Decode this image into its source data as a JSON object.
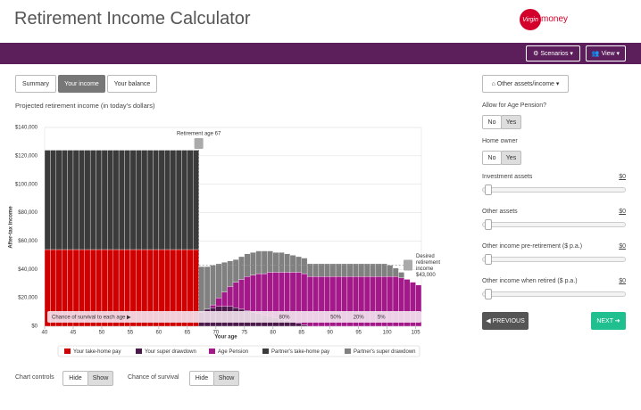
{
  "header": {
    "title": "Retirement Income Calculator",
    "logo_script": "Virgin",
    "logo_word": "money"
  },
  "toolbar": {
    "buttons": [
      "⚙ Scenarios ▾",
      "👥 View ▾"
    ]
  },
  "tabs": {
    "items": [
      "Summary",
      "Your income",
      "Your balance"
    ],
    "active": 1
  },
  "chart_data": {
    "type": "stacked-bar",
    "title": "Projected retirement income (in today's dollars)",
    "x_label": "Your age",
    "y_label": "After-tax income",
    "x": [
      40,
      41,
      42,
      43,
      44,
      45,
      46,
      47,
      48,
      49,
      50,
      51,
      52,
      53,
      54,
      55,
      56,
      57,
      58,
      59,
      60,
      61,
      62,
      63,
      64,
      65,
      66,
      67,
      68,
      69,
      70,
      71,
      72,
      73,
      74,
      75,
      76,
      77,
      78,
      79,
      80,
      81,
      82,
      83,
      84,
      85,
      86,
      87,
      88,
      89,
      90,
      91,
      92,
      93,
      94,
      95,
      96,
      97,
      98,
      99,
      100,
      101,
      102,
      103,
      104,
      105
    ],
    "xlim": [
      40,
      106
    ],
    "xticks": [
      40,
      45,
      50,
      55,
      60,
      65,
      70,
      75,
      80,
      85,
      90,
      95,
      100,
      105
    ],
    "ylim": [
      0,
      140000
    ],
    "yticks": [
      {
        "value": 0,
        "label": "$0"
      },
      {
        "value": 20000,
        "label": "$20,000"
      },
      {
        "value": 40000,
        "label": "$40,000"
      },
      {
        "value": 60000,
        "label": "$60,000"
      },
      {
        "value": 80000,
        "label": "$80,000"
      },
      {
        "value": 100000,
        "label": "$100,000"
      },
      {
        "value": 120000,
        "label": "$120,000"
      },
      {
        "value": 140000,
        "label": "$140,000"
      }
    ],
    "grid": true,
    "series": [
      {
        "name": "Your take-home pay",
        "color": "#d10000",
        "values": [
          54000,
          54000,
          54000,
          54000,
          54000,
          54000,
          54000,
          54000,
          54000,
          54000,
          54000,
          54000,
          54000,
          54000,
          54000,
          54000,
          54000,
          54000,
          54000,
          54000,
          54000,
          54000,
          54000,
          54000,
          54000,
          54000,
          54000,
          0,
          0,
          0,
          0,
          0,
          0,
          0,
          0,
          0,
          0,
          0,
          0,
          0,
          0,
          0,
          0,
          0,
          0,
          0,
          0,
          0,
          0,
          0,
          0,
          0,
          0,
          0,
          0,
          0,
          0,
          0,
          0,
          0,
          0,
          0,
          0,
          0,
          0,
          0
        ]
      },
      {
        "name": "Your super drawdown",
        "color": "#4b1a4b",
        "values": [
          0,
          0,
          0,
          0,
          0,
          0,
          0,
          0,
          0,
          0,
          0,
          0,
          0,
          0,
          0,
          0,
          0,
          0,
          0,
          0,
          0,
          0,
          0,
          0,
          0,
          0,
          0,
          10000,
          12000,
          13000,
          14000,
          14000,
          14000,
          13000,
          12000,
          11000,
          10000,
          9000,
          8000,
          7000,
          6000,
          5000,
          4000,
          3000,
          2000,
          1000,
          0,
          0,
          0,
          0,
          0,
          0,
          0,
          0,
          0,
          0,
          0,
          0,
          0,
          0,
          0,
          0,
          0,
          0,
          0,
          0
        ]
      },
      {
        "name": "Age Pension",
        "color": "#a3198a",
        "values": [
          0,
          0,
          0,
          0,
          0,
          0,
          0,
          0,
          0,
          0,
          0,
          0,
          0,
          0,
          0,
          0,
          0,
          0,
          0,
          0,
          0,
          0,
          0,
          0,
          0,
          0,
          0,
          0,
          0,
          2000,
          6000,
          10000,
          14000,
          18000,
          21000,
          24000,
          26000,
          28000,
          29000,
          31000,
          32000,
          33000,
          34000,
          35000,
          36000,
          36000,
          35000,
          35000,
          35000,
          35000,
          35000,
          35000,
          35000,
          35000,
          35000,
          35000,
          35000,
          35000,
          35000,
          35000,
          35000,
          35000,
          34000,
          33000,
          31000,
          29000
        ]
      },
      {
        "name": "Partner's take-home pay",
        "color": "#3b3b3b",
        "values": [
          70000,
          70000,
          70000,
          70000,
          70000,
          70000,
          70000,
          70000,
          70000,
          70000,
          70000,
          70000,
          70000,
          70000,
          70000,
          70000,
          70000,
          70000,
          70000,
          70000,
          70000,
          70000,
          70000,
          70000,
          70000,
          70000,
          70000,
          0,
          0,
          0,
          0,
          0,
          0,
          0,
          0,
          0,
          0,
          0,
          0,
          0,
          0,
          0,
          0,
          0,
          0,
          0,
          0,
          0,
          0,
          0,
          0,
          0,
          0,
          0,
          0,
          0,
          0,
          0,
          0,
          0,
          0,
          0,
          0,
          0,
          0,
          0
        ]
      },
      {
        "name": "Partner's super drawdown",
        "color": "#808080",
        "values": [
          0,
          0,
          0,
          0,
          0,
          0,
          0,
          0,
          0,
          0,
          0,
          0,
          0,
          0,
          0,
          0,
          0,
          0,
          0,
          0,
          0,
          0,
          0,
          0,
          0,
          0,
          0,
          32000,
          30000,
          28000,
          24000,
          21000,
          18000,
          16000,
          16000,
          16000,
          16000,
          16000,
          16000,
          15000,
          14000,
          14000,
          13000,
          12000,
          11000,
          11000,
          9000,
          9000,
          9000,
          9000,
          9000,
          9000,
          9000,
          9000,
          9000,
          9000,
          9000,
          9000,
          9000,
          9000,
          8000,
          6000,
          4000,
          0,
          0,
          0
        ]
      }
    ],
    "retirement_age": 67,
    "retirement_label": "Retirement age 67",
    "desired_income": 43000,
    "desired_label": [
      "Desired",
      "retirement",
      "income",
      "$43,000"
    ],
    "survival": {
      "label": "Chance of survival to each age ▶",
      "markers": [
        {
          "age": 82,
          "label": "80%"
        },
        {
          "age": 91,
          "label": "50%"
        },
        {
          "age": 95,
          "label": "20%"
        },
        {
          "age": 99,
          "label": "5%"
        }
      ]
    }
  },
  "controls": {
    "chart_controls": "Chart controls",
    "chance_of_survival": "Chance of survival",
    "hide": "Hide",
    "show": "Show"
  },
  "side": {
    "other_button": "⌂ Other assets/income ▾",
    "age_pension": "Allow for Age Pension?",
    "home_owner": "Home owner",
    "no": "No",
    "yes": "Yes",
    "sliders": [
      {
        "label": "Investment assets",
        "value": "$0"
      },
      {
        "label": "Other assets",
        "value": "$0"
      },
      {
        "label": "Other income pre-retirement ($ p.a.)",
        "value": "$0"
      },
      {
        "label": "Other income when retired ($ p.a.)",
        "value": "$0"
      }
    ],
    "previous": "◀ PREVIOUS",
    "next": "NEXT ➜"
  }
}
